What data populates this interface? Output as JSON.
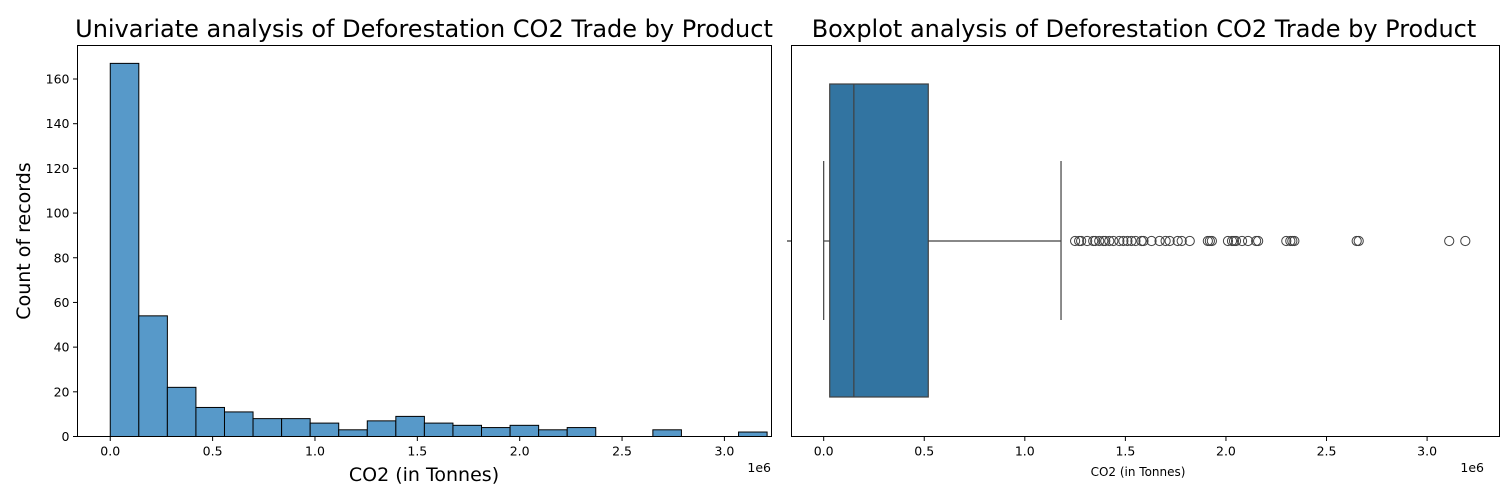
{
  "chart_data": [
    {
      "type": "bar",
      "subtype": "histogram",
      "title": "Univariate analysis of Deforestation CO2 Trade by Product",
      "xlabel": "CO2 (in Tonnes)",
      "ylabel": "Count of records",
      "x_offset_label": "1e6",
      "bar_color": "#5799C9",
      "edge_color": "#000000",
      "xlim": [
        -0.16,
        3.23
      ],
      "ylim": [
        0,
        175
      ],
      "xticks": [
        0.0,
        0.5,
        1.0,
        1.5,
        2.0,
        2.5,
        3.0
      ],
      "xtick_labels": [
        "0.0",
        "0.5",
        "1.0",
        "1.5",
        "2.0",
        "2.5",
        "3.0"
      ],
      "yticks": [
        0,
        20,
        40,
        60,
        80,
        100,
        120,
        140,
        160
      ],
      "ytick_labels": [
        "0",
        "20",
        "40",
        "60",
        "80",
        "100",
        "120",
        "140",
        "160"
      ],
      "bin_start": 0.0,
      "bin_width": 0.1395,
      "counts": [
        167,
        54,
        22,
        13,
        11,
        8,
        8,
        6,
        3,
        7,
        9,
        6,
        5,
        4,
        5,
        3,
        4,
        0,
        0,
        3,
        0,
        0,
        2
      ]
    },
    {
      "type": "boxplot",
      "title": "Boxplot analysis of Deforestation CO2 Trade by Product",
      "xlabel": "CO2 (in Tonnes)",
      "x_offset_label": "1e6",
      "box_color": "#3274A1",
      "line_color": "#404040",
      "xlim": [
        -0.16,
        3.36
      ],
      "xticks": [
        0.0,
        0.5,
        1.0,
        1.5,
        2.0,
        2.5,
        3.0
      ],
      "xtick_labels": [
        "0.0",
        "0.5",
        "1.0",
        "1.5",
        "2.0",
        "2.5",
        "3.0"
      ],
      "whisker_low": 0.0,
      "q1": 0.03,
      "median": 0.15,
      "q3": 0.52,
      "whisker_high": 1.18,
      "outliers": [
        1.25,
        1.27,
        1.28,
        1.31,
        1.34,
        1.35,
        1.37,
        1.39,
        1.4,
        1.42,
        1.44,
        1.47,
        1.49,
        1.51,
        1.53,
        1.55,
        1.58,
        1.59,
        1.63,
        1.67,
        1.7,
        1.72,
        1.76,
        1.78,
        1.82,
        1.91,
        1.92,
        1.93,
        2.01,
        2.03,
        2.04,
        2.05,
        2.08,
        2.11,
        2.15,
        2.16,
        2.3,
        2.32,
        2.33,
        2.34,
        2.65,
        2.66,
        3.11,
        3.19
      ]
    }
  ]
}
